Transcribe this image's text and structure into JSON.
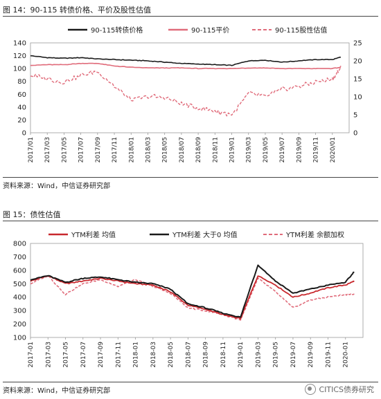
{
  "figure1": {
    "label": "图 14：90-115 转债价格、平价及股性估值",
    "source": "资料来源：Wind，中信证券研究部",
    "chart_data": {
      "type": "line",
      "title": "",
      "x_ticks": [
        "2017/01",
        "2017/03",
        "2017/05",
        "2017/07",
        "2017/09",
        "2017/11",
        "2018/01",
        "2018/03",
        "2018/05",
        "2018/07",
        "2018/09",
        "2018/11",
        "2019/01",
        "2019/03",
        "2019/05",
        "2019/07",
        "2019/09",
        "2019/11",
        "2020/01"
      ],
      "y_left_ticks": [
        0,
        20,
        40,
        60,
        80,
        100,
        120,
        140
      ],
      "y_right_ticks": [
        0,
        5,
        10,
        15,
        20,
        25
      ],
      "y_left_lim": [
        0,
        140
      ],
      "y_right_lim": [
        0,
        25
      ],
      "series": [
        {
          "name": "90-115转债价格",
          "axis": "left",
          "color": "#1a1a1a",
          "style": "solid",
          "x": [
            "2017/01",
            "2017/03",
            "2017/05",
            "2017/07",
            "2017/09",
            "2017/11",
            "2018/01",
            "2018/03",
            "2018/05",
            "2018/07",
            "2018/09",
            "2018/11",
            "2019/01",
            "2019/03",
            "2019/05",
            "2019/07",
            "2019/09",
            "2019/11",
            "2020/01",
            "2020/02"
          ],
          "values": [
            120,
            117,
            116,
            117,
            115,
            114,
            113,
            112,
            110,
            108,
            107,
            106,
            105,
            112,
            113,
            110,
            112,
            114,
            114,
            118
          ]
        },
        {
          "name": "90-115平价",
          "axis": "left",
          "color": "#e06b7a",
          "style": "solid",
          "x": [
            "2017/01",
            "2017/03",
            "2017/05",
            "2017/07",
            "2017/09",
            "2017/11",
            "2018/01",
            "2018/03",
            "2018/05",
            "2018/07",
            "2018/09",
            "2018/11",
            "2019/01",
            "2019/03",
            "2019/05",
            "2019/07",
            "2019/09",
            "2019/11",
            "2020/01",
            "2020/02"
          ],
          "values": [
            105,
            106,
            106,
            108,
            108,
            104,
            102,
            101,
            101,
            101,
            100,
            100,
            100,
            101,
            101,
            100,
            100,
            100,
            100,
            102
          ]
        },
        {
          "name": "90-115股性估值",
          "axis": "right",
          "color": "#e06b7a",
          "style": "dashed",
          "x": [
            "2017/01",
            "2017/03",
            "2017/05",
            "2017/07",
            "2017/09",
            "2017/11",
            "2018/01",
            "2018/03",
            "2018/05",
            "2018/07",
            "2018/09",
            "2018/11",
            "2019/01",
            "2019/03",
            "2019/05",
            "2019/07",
            "2019/09",
            "2019/11",
            "2020/01",
            "2020/02"
          ],
          "values": [
            16,
            15,
            14,
            16,
            17,
            13,
            9,
            10,
            10,
            8,
            7,
            6,
            5,
            11,
            10,
            12,
            13,
            14,
            15,
            18
          ]
        }
      ]
    }
  },
  "figure2": {
    "label": "图 15：债性估值",
    "source": "资料来源：Wind，中信证券研究部",
    "chart_data": {
      "type": "line",
      "title": "",
      "x_ticks": [
        "2017-01",
        "2017-03",
        "2017-05",
        "2017-07",
        "2017-09",
        "2017-11",
        "2018-01",
        "2018-03",
        "2018-05",
        "2018-07",
        "2018-09",
        "2018-11",
        "2019-01",
        "2019-03",
        "2019-05",
        "2019-07",
        "2019-09",
        "2019-11",
        "2020-01"
      ],
      "y_ticks": [
        100,
        200,
        300,
        400,
        500,
        600,
        700,
        800
      ],
      "ylim": [
        100,
        800
      ],
      "series": [
        {
          "name": "YTM利差 均值",
          "color": "#c8282d",
          "style": "solid",
          "x": [
            "2017-01",
            "2017-03",
            "2017-05",
            "2017-07",
            "2017-09",
            "2017-11",
            "2018-01",
            "2018-03",
            "2018-05",
            "2018-07",
            "2018-09",
            "2018-11",
            "2019-01",
            "2019-03",
            "2019-05",
            "2019-07",
            "2019-09",
            "2019-11",
            "2020-01",
            "2020-02"
          ],
          "values": [
            520,
            560,
            500,
            520,
            540,
            520,
            500,
            490,
            440,
            340,
            310,
            270,
            240,
            560,
            490,
            400,
            430,
            470,
            490,
            520
          ]
        },
        {
          "name": "YTM利差 大于0 均值",
          "color": "#1a1a1a",
          "style": "solid",
          "x": [
            "2017-01",
            "2017-03",
            "2017-05",
            "2017-07",
            "2017-09",
            "2017-11",
            "2018-01",
            "2018-03",
            "2018-05",
            "2018-07",
            "2018-09",
            "2018-11",
            "2019-01",
            "2019-03",
            "2019-05",
            "2019-07",
            "2019-09",
            "2019-11",
            "2020-01",
            "2020-02"
          ],
          "values": [
            530,
            560,
            510,
            540,
            550,
            530,
            510,
            500,
            460,
            350,
            320,
            280,
            250,
            640,
            520,
            430,
            460,
            490,
            510,
            590
          ]
        },
        {
          "name": "YTM利差 余额加权",
          "color": "#e06b7a",
          "style": "dashed",
          "x": [
            "2017-01",
            "2017-03",
            "2017-05",
            "2017-07",
            "2017-09",
            "2017-11",
            "2018-01",
            "2018-03",
            "2018-05",
            "2018-07",
            "2018-09",
            "2018-11",
            "2019-01",
            "2019-03",
            "2019-05",
            "2019-07",
            "2019-09",
            "2019-11",
            "2020-01",
            "2020-02"
          ],
          "values": [
            500,
            560,
            420,
            500,
            530,
            480,
            530,
            480,
            430,
            320,
            300,
            270,
            230,
            540,
            440,
            320,
            380,
            400,
            420,
            420
          ]
        }
      ]
    }
  },
  "watermark": "CITICS债券研究"
}
